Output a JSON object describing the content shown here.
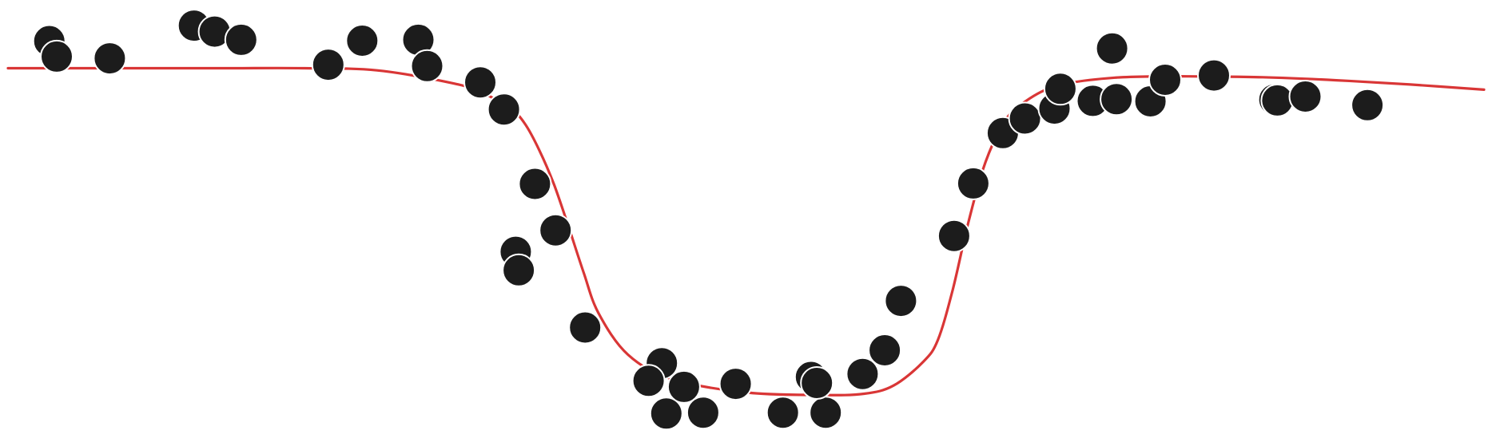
{
  "chart_data": {
    "type": "scatter",
    "title": "",
    "xlabel": "",
    "ylabel": "",
    "grid": false,
    "axes_visible": false,
    "xlim": [
      0,
      100
    ],
    "ylim": [
      0,
      100
    ],
    "colors": {
      "points": "#1c1c1c",
      "fit_line": "#d93636",
      "background": "#ffffff"
    },
    "series": [
      {
        "kind": "points",
        "x": [
          2.8,
          3.3,
          6.9,
          12.6,
          14.0,
          15.8,
          21.7,
          24.0,
          27.8,
          28.4,
          32.0,
          33.6,
          35.7,
          37.1,
          34.4,
          34.6,
          39.1,
          44.3,
          44.6,
          43.4,
          45.8,
          47.1,
          49.3,
          52.5,
          54.4,
          55.4,
          54.8,
          57.9,
          59.4,
          60.5,
          64.1,
          65.4,
          67.4,
          68.9,
          70.9,
          71.3,
          73.5,
          74.8,
          75.1,
          77.4,
          78.4,
          81.7,
          85.8,
          86.0,
          87.9,
          92.1
        ],
        "y": [
          92.3,
          88.7,
          88.3,
          95.9,
          94.5,
          92.6,
          86.8,
          92.4,
          92.6,
          86.5,
          82.7,
          76.4,
          59.1,
          48.3,
          43.3,
          39.0,
          25.7,
          17.4,
          5.7,
          13.3,
          11.9,
          5.9,
          12.6,
          5.9,
          14.2,
          5.9,
          12.8,
          14.9,
          20.4,
          31.9,
          47.0,
          59.2,
          70.9,
          74.3,
          76.6,
          81.2,
          78.4,
          90.6,
          78.8,
          78.3,
          83.3,
          84.3,
          78.7,
          78.5,
          79.4,
          77.4
        ]
      },
      {
        "kind": "line",
        "x": [
          0,
          5,
          10,
          15,
          20,
          25,
          30,
          32,
          34,
          35,
          36,
          37,
          38,
          39,
          40,
          42,
          45,
          50,
          55,
          58,
          60,
          62,
          63,
          64,
          65,
          66,
          67,
          68,
          70,
          72,
          75,
          78,
          80,
          85,
          90,
          95,
          100
        ],
        "y": [
          86.0,
          86.0,
          86.0,
          86.0,
          86.0,
          85.5,
          82.6,
          80.5,
          76.7,
          73.2,
          66.9,
          58.9,
          48.9,
          38.5,
          29.1,
          19.4,
          13.7,
          10.6,
          10.0,
          10.3,
          12.2,
          17.7,
          22.8,
          34.4,
          49.2,
          61.9,
          70.4,
          75.7,
          80.5,
          82.6,
          83.8,
          84.1,
          84.1,
          83.9,
          83.2,
          82.2,
          81.0
        ]
      }
    ]
  }
}
